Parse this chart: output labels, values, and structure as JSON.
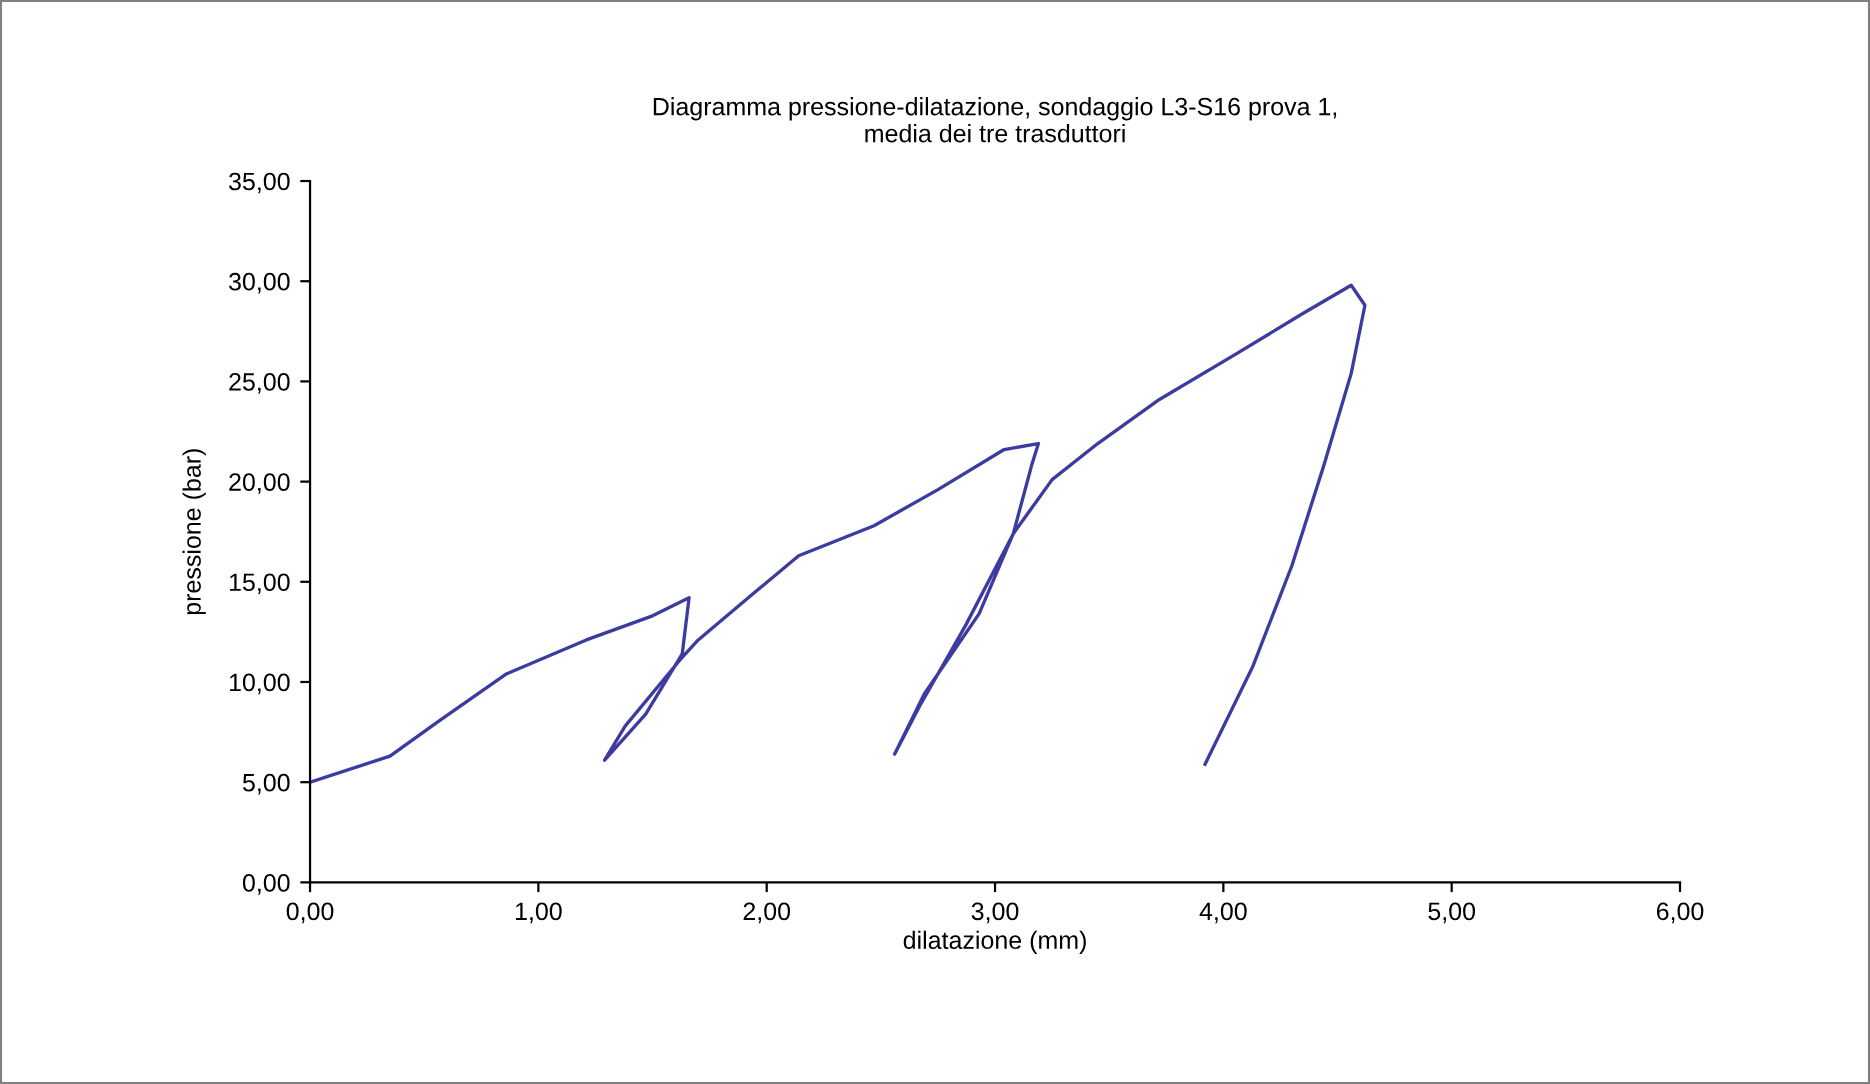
{
  "chart_data": {
    "type": "line",
    "title": "Diagramma pressione-dilatazione, sondaggio L3-S16 prova 1,\nmedia dei tre trasduttori",
    "xlabel": "dilatazione (mm)",
    "ylabel": "pressione (bar)",
    "xlim": [
      0,
      6
    ],
    "ylim": [
      0,
      35
    ],
    "xticks": [
      {
        "value": 0,
        "label": "0,00"
      },
      {
        "value": 1,
        "label": "1,00"
      },
      {
        "value": 2,
        "label": "2,00"
      },
      {
        "value": 3,
        "label": "3,00"
      },
      {
        "value": 4,
        "label": "4,00"
      },
      {
        "value": 5,
        "label": "5,00"
      },
      {
        "value": 6,
        "label": "6,00"
      }
    ],
    "yticks": [
      {
        "value": 0,
        "label": "0,00"
      },
      {
        "value": 5,
        "label": "5,00"
      },
      {
        "value": 10,
        "label": "10,00"
      },
      {
        "value": 15,
        "label": "15,00"
      },
      {
        "value": 20,
        "label": "20,00"
      },
      {
        "value": 25,
        "label": "25,00"
      },
      {
        "value": 30,
        "label": "30,00"
      },
      {
        "value": 35,
        "label": "35,00"
      }
    ],
    "grid": false,
    "legend": false,
    "marker": "none",
    "line_style": "solid",
    "series": [
      {
        "color": "#3c3ca0",
        "x": [
          0,
          0.35,
          0.57,
          0.86,
          1.21,
          1.5,
          1.66,
          1.63,
          1.47,
          1.29,
          1.38,
          1.62,
          1.7,
          1.94,
          2.14,
          2.47,
          2.75,
          3.04,
          3.19,
          3.16,
          3.08,
          2.87,
          2.67,
          2.56,
          2.69,
          2.93,
          3.08,
          3.25,
          3.45,
          3.72,
          4.06,
          4.35,
          4.56,
          4.62,
          4.56,
          4.44,
          4.3,
          4.13,
          3.92
        ],
        "values": [
          5.0,
          6.3,
          8.1,
          10.4,
          12.1,
          13.3,
          14.2,
          11.4,
          8.4,
          6.1,
          7.8,
          11.1,
          12.1,
          14.4,
          16.3,
          17.8,
          19.6,
          21.6,
          21.9,
          20.8,
          17.4,
          12.8,
          8.8,
          6.4,
          9.4,
          13.4,
          17.4,
          20.1,
          21.9,
          24.1,
          26.4,
          28.4,
          29.8,
          28.8,
          25.4,
          20.8,
          15.8,
          10.8,
          5.9
        ]
      }
    ]
  }
}
